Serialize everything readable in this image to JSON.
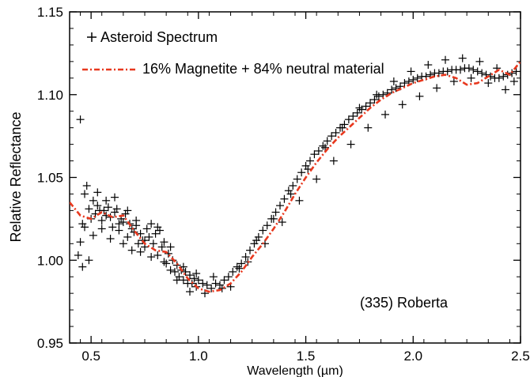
{
  "chart_data": {
    "type": "scatter",
    "title": "",
    "xlabel": "Wavelength (µm)",
    "ylabel": "Relative Reflectance",
    "xlim": [
      0.4,
      2.5
    ],
    "ylim": [
      0.95,
      1.15
    ],
    "xticks": [
      0.5,
      1.0,
      1.5,
      2.0,
      2.5
    ],
    "xtick_labels": [
      "0.5",
      "1.0",
      "1.5",
      "2.0",
      "2.5"
    ],
    "yticks": [
      0.95,
      1.0,
      1.05,
      1.1,
      1.15
    ],
    "ytick_labels": [
      "0.95",
      "1.00",
      "1.05",
      "1.10",
      "1.15"
    ],
    "grid": false,
    "legend_position": "top-left",
    "annotation": "(335) Roberta",
    "series": [
      {
        "name": "Asteroid Spectrum",
        "kind": "scatter",
        "marker": "plus",
        "color": "#000000",
        "x": [
          0.44,
          0.45,
          0.46,
          0.47,
          0.48,
          0.49,
          0.5,
          0.51,
          0.52,
          0.53,
          0.54,
          0.55,
          0.56,
          0.57,
          0.58,
          0.59,
          0.6,
          0.61,
          0.62,
          0.63,
          0.64,
          0.65,
          0.66,
          0.67,
          0.68,
          0.69,
          0.7,
          0.71,
          0.72,
          0.73,
          0.74,
          0.75,
          0.76,
          0.77,
          0.78,
          0.79,
          0.8,
          0.81,
          0.82,
          0.83,
          0.84,
          0.85,
          0.86,
          0.87,
          0.88,
          0.89,
          0.9,
          0.91,
          0.92,
          0.93,
          0.94,
          0.95,
          0.96,
          0.97,
          0.98,
          0.99,
          1.0,
          1.02,
          1.04,
          1.06,
          1.08,
          1.1,
          1.12,
          1.14,
          1.16,
          1.18,
          1.2,
          1.22,
          1.24,
          1.26,
          1.28,
          1.3,
          1.32,
          1.34,
          1.36,
          1.38,
          1.4,
          1.42,
          1.44,
          1.46,
          1.48,
          1.5,
          1.52,
          1.54,
          1.56,
          1.58,
          1.6,
          1.62,
          1.64,
          1.66,
          1.68,
          1.7,
          1.72,
          1.74,
          1.76,
          1.78,
          1.8,
          1.82,
          1.84,
          1.86,
          1.88,
          1.9,
          1.92,
          1.94,
          1.96,
          1.98,
          2.0,
          2.02,
          2.04,
          2.06,
          2.08,
          2.1,
          2.12,
          2.14,
          2.16,
          2.18,
          2.2,
          2.22,
          2.24,
          2.26,
          2.28,
          2.3,
          2.32,
          2.34,
          2.36,
          2.38,
          2.4,
          2.42,
          2.44,
          2.46,
          2.48,
          0.45,
          0.46,
          0.47,
          0.49,
          0.51,
          0.53,
          0.55,
          0.57,
          0.59,
          0.61,
          0.63,
          0.65,
          0.67,
          0.69,
          0.71,
          0.73,
          0.75,
          0.78,
          0.81,
          0.84,
          0.87,
          0.9,
          0.93,
          0.96,
          0.99,
          1.03,
          1.07,
          1.11,
          1.15,
          1.19,
          1.23,
          1.27,
          1.31,
          1.35,
          1.39,
          1.43,
          1.47,
          1.51,
          1.55,
          1.59,
          1.63,
          1.67,
          1.71,
          1.75,
          1.79,
          1.83,
          1.87,
          1.91,
          1.95,
          1.99,
          2.03,
          2.07,
          2.11,
          2.15,
          2.19,
          2.23,
          2.27,
          2.31,
          2.35,
          2.39,
          2.43,
          2.47
        ],
        "y": [
          1.003,
          1.085,
          0.996,
          1.02,
          1.045,
          1.031,
          1.025,
          1.036,
          1.028,
          1.033,
          1.03,
          1.024,
          1.03,
          1.027,
          1.032,
          1.026,
          1.02,
          1.029,
          1.031,
          1.018,
          1.025,
          1.023,
          1.028,
          1.014,
          1.022,
          1.019,
          1.017,
          1.021,
          1.01,
          1.016,
          1.012,
          1.008,
          1.019,
          1.014,
          1.022,
          1.01,
          1.016,
          1.003,
          1.018,
          1.008,
          1.011,
          0.998,
          1.004,
          0.994,
          1.0,
          0.993,
          0.997,
          0.99,
          0.994,
          0.988,
          0.993,
          0.986,
          0.991,
          0.986,
          0.989,
          0.984,
          0.988,
          0.986,
          0.985,
          0.983,
          0.986,
          0.985,
          0.988,
          0.99,
          0.993,
          0.996,
          0.998,
          1.002,
          1.006,
          1.01,
          1.014,
          1.018,
          1.021,
          1.025,
          1.029,
          1.033,
          1.037,
          1.042,
          1.045,
          1.049,
          1.053,
          1.057,
          1.06,
          1.064,
          1.066,
          1.069,
          1.072,
          1.075,
          1.077,
          1.08,
          1.082,
          1.085,
          1.087,
          1.089,
          1.091,
          1.093,
          1.095,
          1.097,
          1.099,
          1.1,
          1.101,
          1.103,
          1.104,
          1.105,
          1.107,
          1.108,
          1.109,
          1.11,
          1.111,
          1.111,
          1.112,
          1.113,
          1.113,
          1.114,
          1.114,
          1.115,
          1.115,
          1.115,
          1.116,
          1.116,
          1.115,
          1.114,
          1.113,
          1.112,
          1.111,
          1.11,
          1.11,
          1.111,
          1.112,
          1.113,
          1.114,
          1.011,
          1.022,
          1.04,
          1.0,
          1.015,
          1.041,
          1.019,
          1.036,
          1.013,
          1.038,
          1.022,
          1.01,
          1.03,
          1.006,
          1.024,
          1.005,
          1.012,
          1.002,
          1.02,
          0.999,
          1.008,
          0.988,
          0.996,
          0.981,
          0.992,
          0.98,
          0.99,
          0.983,
          0.984,
          0.995,
          0.999,
          1.012,
          1.01,
          1.025,
          1.023,
          1.04,
          1.036,
          1.055,
          1.049,
          1.068,
          1.06,
          1.08,
          1.07,
          1.092,
          1.08,
          1.1,
          1.088,
          1.108,
          1.094,
          1.114,
          1.099,
          1.118,
          1.104,
          1.121,
          1.108,
          1.122,
          1.11,
          1.12,
          1.107,
          1.116,
          1.103,
          1.108
        ]
      },
      {
        "name": "16% Magnetite + 84% neutral material",
        "kind": "line",
        "style": "dash-dot",
        "color": "#e8381e",
        "x": [
          0.4,
          0.45,
          0.5,
          0.55,
          0.6,
          0.65,
          0.7,
          0.75,
          0.8,
          0.85,
          0.9,
          0.95,
          1.0,
          1.05,
          1.1,
          1.15,
          1.2,
          1.25,
          1.3,
          1.35,
          1.4,
          1.45,
          1.5,
          1.55,
          1.6,
          1.65,
          1.7,
          1.75,
          1.8,
          1.85,
          1.9,
          1.95,
          2.0,
          2.05,
          2.1,
          2.15,
          2.2,
          2.25,
          2.3,
          2.35,
          2.4,
          2.45,
          2.5
        ],
        "y": [
          1.035,
          1.027,
          1.025,
          1.029,
          1.026,
          1.027,
          1.018,
          1.01,
          1.006,
          1.005,
          0.998,
          0.989,
          0.983,
          0.981,
          0.982,
          0.986,
          0.993,
          1.002,
          1.01,
          1.019,
          1.029,
          1.04,
          1.05,
          1.059,
          1.067,
          1.074,
          1.08,
          1.086,
          1.092,
          1.097,
          1.101,
          1.104,
          1.107,
          1.109,
          1.111,
          1.112,
          1.11,
          1.106,
          1.107,
          1.111,
          1.115,
          1.112,
          1.12
        ]
      }
    ]
  }
}
